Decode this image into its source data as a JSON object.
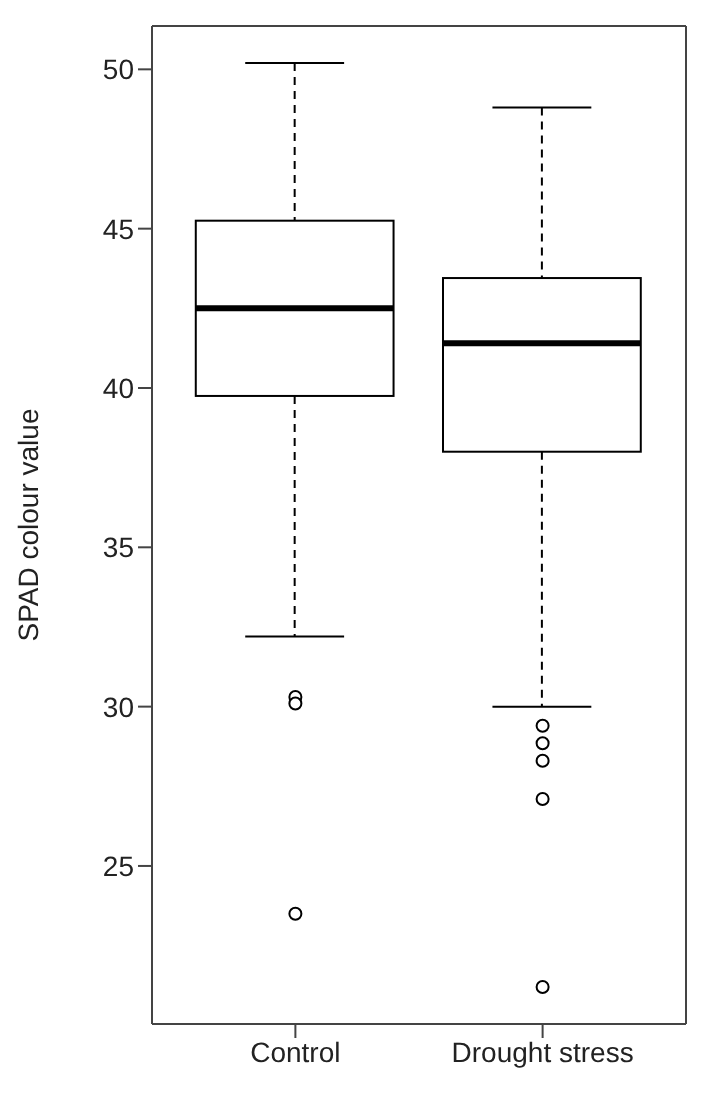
{
  "chart_data": {
    "type": "box",
    "ylabel": "SPAD colour value",
    "categories": [
      "Control",
      "Drought stress"
    ],
    "boxes": [
      {
        "low": 32.2,
        "q1": 39.75,
        "median": 42.5,
        "q3": 45.25,
        "high": 50.2,
        "outliers": [
          30.3,
          30.1,
          23.5
        ]
      },
      {
        "low": 30.0,
        "q1": 38.0,
        "median": 41.4,
        "q3": 43.45,
        "high": 48.8,
        "outliers": [
          29.4,
          28.85,
          28.3,
          27.1,
          21.2
        ]
      }
    ],
    "ylim": [
      20.04,
      51.36
    ],
    "yticks": [
      25,
      30,
      35,
      40,
      45,
      50
    ]
  }
}
